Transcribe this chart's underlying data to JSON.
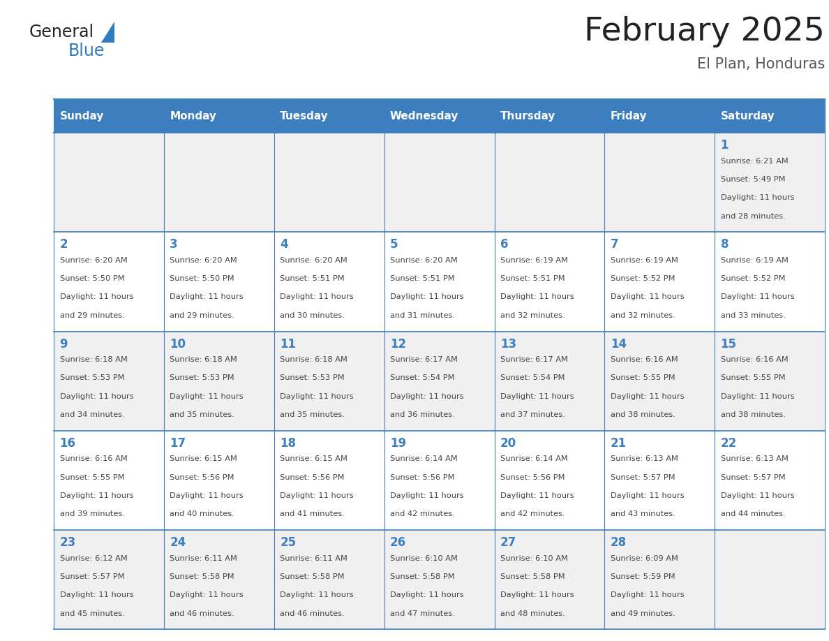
{
  "title": "February 2025",
  "subtitle": "El Plan, Honduras",
  "days_of_week": [
    "Sunday",
    "Monday",
    "Tuesday",
    "Wednesday",
    "Thursday",
    "Friday",
    "Saturday"
  ],
  "header_bg": "#3d7ebf",
  "header_text": "#ffffff",
  "cell_bg_odd": "#f0f0f0",
  "cell_bg_even": "#ffffff",
  "border_color": "#3d7ebf",
  "day_num_color": "#3d7ebf",
  "text_color": "#444444",
  "title_color": "#222222",
  "subtitle_color": "#555555",
  "logo_general_color": "#222222",
  "logo_blue_color": "#2e7ebf",
  "weeks": [
    [
      {
        "day": null,
        "sunrise": null,
        "sunset": null,
        "daylight": null
      },
      {
        "day": null,
        "sunrise": null,
        "sunset": null,
        "daylight": null
      },
      {
        "day": null,
        "sunrise": null,
        "sunset": null,
        "daylight": null
      },
      {
        "day": null,
        "sunrise": null,
        "sunset": null,
        "daylight": null
      },
      {
        "day": null,
        "sunrise": null,
        "sunset": null,
        "daylight": null
      },
      {
        "day": null,
        "sunrise": null,
        "sunset": null,
        "daylight": null
      },
      {
        "day": 1,
        "sunrise": "6:21 AM",
        "sunset": "5:49 PM",
        "daylight": "11 hours\nand 28 minutes."
      }
    ],
    [
      {
        "day": 2,
        "sunrise": "6:20 AM",
        "sunset": "5:50 PM",
        "daylight": "11 hours\nand 29 minutes."
      },
      {
        "day": 3,
        "sunrise": "6:20 AM",
        "sunset": "5:50 PM",
        "daylight": "11 hours\nand 29 minutes."
      },
      {
        "day": 4,
        "sunrise": "6:20 AM",
        "sunset": "5:51 PM",
        "daylight": "11 hours\nand 30 minutes."
      },
      {
        "day": 5,
        "sunrise": "6:20 AM",
        "sunset": "5:51 PM",
        "daylight": "11 hours\nand 31 minutes."
      },
      {
        "day": 6,
        "sunrise": "6:19 AM",
        "sunset": "5:51 PM",
        "daylight": "11 hours\nand 32 minutes."
      },
      {
        "day": 7,
        "sunrise": "6:19 AM",
        "sunset": "5:52 PM",
        "daylight": "11 hours\nand 32 minutes."
      },
      {
        "day": 8,
        "sunrise": "6:19 AM",
        "sunset": "5:52 PM",
        "daylight": "11 hours\nand 33 minutes."
      }
    ],
    [
      {
        "day": 9,
        "sunrise": "6:18 AM",
        "sunset": "5:53 PM",
        "daylight": "11 hours\nand 34 minutes."
      },
      {
        "day": 10,
        "sunrise": "6:18 AM",
        "sunset": "5:53 PM",
        "daylight": "11 hours\nand 35 minutes."
      },
      {
        "day": 11,
        "sunrise": "6:18 AM",
        "sunset": "5:53 PM",
        "daylight": "11 hours\nand 35 minutes."
      },
      {
        "day": 12,
        "sunrise": "6:17 AM",
        "sunset": "5:54 PM",
        "daylight": "11 hours\nand 36 minutes."
      },
      {
        "day": 13,
        "sunrise": "6:17 AM",
        "sunset": "5:54 PM",
        "daylight": "11 hours\nand 37 minutes."
      },
      {
        "day": 14,
        "sunrise": "6:16 AM",
        "sunset": "5:55 PM",
        "daylight": "11 hours\nand 38 minutes."
      },
      {
        "day": 15,
        "sunrise": "6:16 AM",
        "sunset": "5:55 PM",
        "daylight": "11 hours\nand 38 minutes."
      }
    ],
    [
      {
        "day": 16,
        "sunrise": "6:16 AM",
        "sunset": "5:55 PM",
        "daylight": "11 hours\nand 39 minutes."
      },
      {
        "day": 17,
        "sunrise": "6:15 AM",
        "sunset": "5:56 PM",
        "daylight": "11 hours\nand 40 minutes."
      },
      {
        "day": 18,
        "sunrise": "6:15 AM",
        "sunset": "5:56 PM",
        "daylight": "11 hours\nand 41 minutes."
      },
      {
        "day": 19,
        "sunrise": "6:14 AM",
        "sunset": "5:56 PM",
        "daylight": "11 hours\nand 42 minutes."
      },
      {
        "day": 20,
        "sunrise": "6:14 AM",
        "sunset": "5:56 PM",
        "daylight": "11 hours\nand 42 minutes."
      },
      {
        "day": 21,
        "sunrise": "6:13 AM",
        "sunset": "5:57 PM",
        "daylight": "11 hours\nand 43 minutes."
      },
      {
        "day": 22,
        "sunrise": "6:13 AM",
        "sunset": "5:57 PM",
        "daylight": "11 hours\nand 44 minutes."
      }
    ],
    [
      {
        "day": 23,
        "sunrise": "6:12 AM",
        "sunset": "5:57 PM",
        "daylight": "11 hours\nand 45 minutes."
      },
      {
        "day": 24,
        "sunrise": "6:11 AM",
        "sunset": "5:58 PM",
        "daylight": "11 hours\nand 46 minutes."
      },
      {
        "day": 25,
        "sunrise": "6:11 AM",
        "sunset": "5:58 PM",
        "daylight": "11 hours\nand 46 minutes."
      },
      {
        "day": 26,
        "sunrise": "6:10 AM",
        "sunset": "5:58 PM",
        "daylight": "11 hours\nand 47 minutes."
      },
      {
        "day": 27,
        "sunrise": "6:10 AM",
        "sunset": "5:58 PM",
        "daylight": "11 hours\nand 48 minutes."
      },
      {
        "day": 28,
        "sunrise": "6:09 AM",
        "sunset": "5:59 PM",
        "daylight": "11 hours\nand 49 minutes."
      },
      {
        "day": null,
        "sunrise": null,
        "sunset": null,
        "daylight": null
      }
    ]
  ]
}
